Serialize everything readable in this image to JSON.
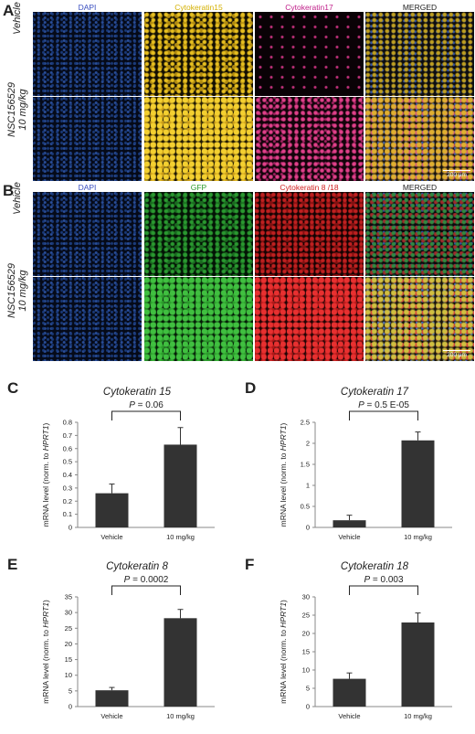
{
  "panels": {
    "A": {
      "letter": "A",
      "channels": [
        "DAPI",
        "Cytokeratin15",
        "Cytokeratin17",
        "MERGED"
      ],
      "channel_colors": [
        "#3a4fc0",
        "#d4b000",
        "#c0208a",
        "#222222"
      ],
      "rows": [
        {
          "line1": "Vehicle",
          "line2": ""
        },
        {
          "line1": "NSC156529",
          "line2": "10 mg/kg"
        }
      ],
      "scale_bar": "200 μm"
    },
    "B": {
      "letter": "B",
      "channels": [
        "DAPI",
        "GFP",
        "Cytokeratin 8 /18",
        "MERGED"
      ],
      "channel_colors": [
        "#3a4fc0",
        "#2a9a2a",
        "#d02020",
        "#222222"
      ],
      "rows": [
        {
          "line1": "Vehicle",
          "line2": ""
        },
        {
          "line1": "NSC156529",
          "line2": "10 mg/kg"
        }
      ],
      "scale_bar": "200 μm"
    }
  },
  "chart_data": [
    {
      "letter": "C",
      "type": "bar",
      "title": "Cytokeratin 15",
      "categories": [
        "Vehicle",
        "10 mg/kg"
      ],
      "values": [
        0.26,
        0.63
      ],
      "errors": [
        0.07,
        0.13
      ],
      "ylim": [
        0,
        0.8
      ],
      "yticks": [
        0,
        0.1,
        0.2,
        0.3,
        0.4,
        0.5,
        0.6,
        0.7,
        0.8
      ],
      "ytick_labels": [
        "0",
        "0.1",
        "0.2",
        "0.3",
        "0.4",
        "0.5",
        "0.6",
        "0.7",
        "0.8"
      ],
      "ylabel_pre": "mRNA level (norm. to ",
      "ylabel_gene": "HPRT1",
      "ylabel_post": ")",
      "p_label": "P",
      "p_value": " = 0.06"
    },
    {
      "letter": "D",
      "type": "bar",
      "title": "Cytokeratin 17",
      "categories": [
        "Vehicle",
        "10 mg/kg"
      ],
      "values": [
        0.17,
        2.07
      ],
      "errors": [
        0.12,
        0.2
      ],
      "ylim": [
        0,
        2.5
      ],
      "yticks": [
        0,
        0.5,
        1,
        1.5,
        2,
        2.5
      ],
      "ytick_labels": [
        "0",
        "0.5",
        "1",
        "1.5",
        "2",
        "2.5"
      ],
      "ylabel_pre": "mRNA level (norm. to ",
      "ylabel_gene": "HPRT1",
      "ylabel_post": ")",
      "p_label": "P",
      "p_value": " = 0.5 E-05"
    },
    {
      "letter": "E",
      "type": "bar",
      "title": "Cytokeratin 8",
      "categories": [
        "Vehicle",
        "10 mg/kg"
      ],
      "values": [
        5.2,
        28.2
      ],
      "errors": [
        0.9,
        2.8
      ],
      "ylim": [
        0,
        35
      ],
      "yticks": [
        0,
        5,
        10,
        15,
        20,
        25,
        30,
        35
      ],
      "ytick_labels": [
        "0",
        "5",
        "10",
        "15",
        "20",
        "25",
        "30",
        "35"
      ],
      "ylabel_pre": "mRNA level (norm. to ",
      "ylabel_gene": "HPRT1",
      "ylabel_post": ")",
      "p_label": "P",
      "p_value": " = 0.0002"
    },
    {
      "letter": "F",
      "type": "bar",
      "title": "Cytokeratin 18",
      "categories": [
        "Vehicle",
        "10 mg/kg"
      ],
      "values": [
        7.6,
        23.0
      ],
      "errors": [
        1.6,
        2.6
      ],
      "ylim": [
        0,
        30
      ],
      "yticks": [
        0,
        5,
        10,
        15,
        20,
        25,
        30
      ],
      "ytick_labels": [
        "0",
        "5",
        "10",
        "15",
        "20",
        "25",
        "30"
      ],
      "ylabel_pre": "mRNA level (norm. to ",
      "ylabel_gene": "HPRT1",
      "ylabel_post": ")",
      "p_label": "P",
      "p_value": " = 0.003"
    }
  ],
  "colors": {
    "bar": "#333333",
    "axis": "#888888"
  }
}
